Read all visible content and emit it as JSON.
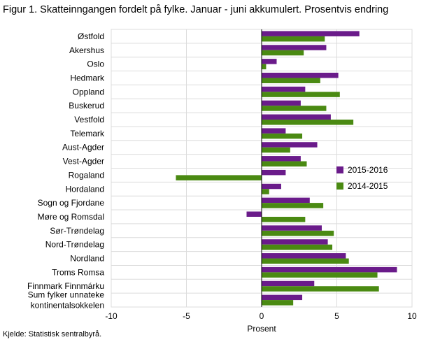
{
  "title": "Figur 1. Skatteinngangen fordelt på fylke. Januar - juni akkumulert. Prosentvis endring",
  "source": "Kjelde: Statistisk sentralbyrå.",
  "chart_data": {
    "type": "bar",
    "orientation": "horizontal",
    "categories": [
      [
        "Østfold"
      ],
      [
        "Akershus"
      ],
      [
        "Oslo"
      ],
      [
        "Hedmark"
      ],
      [
        "Oppland"
      ],
      [
        "Buskerud"
      ],
      [
        "Vestfold"
      ],
      [
        "Telemark"
      ],
      [
        "Aust-Agder"
      ],
      [
        "Vest-Agder"
      ],
      [
        "Rogaland"
      ],
      [
        "Hordaland"
      ],
      [
        "Sogn og Fjordane"
      ],
      [
        "Møre og Romsdal"
      ],
      [
        "Sør-Trøndelag"
      ],
      [
        "Nord-Trøndelag"
      ],
      [
        "Nordland"
      ],
      [
        "Troms Romsa"
      ],
      [
        "Finnmark Finnmárku"
      ],
      [
        "Sum fylker unnateke",
        "kontinentalsokkelen"
      ]
    ],
    "series": [
      {
        "name": "2015-2016",
        "color": "#6a1b8a",
        "values": [
          6.5,
          4.3,
          1.0,
          5.1,
          2.9,
          2.6,
          4.6,
          1.6,
          3.7,
          2.6,
          1.6,
          1.3,
          3.2,
          -1.0,
          4.0,
          4.4,
          5.6,
          9.0,
          3.5,
          2.7
        ]
      },
      {
        "name": "2014-2015",
        "color": "#4a8a12",
        "values": [
          4.2,
          2.8,
          0.3,
          3.9,
          5.2,
          4.3,
          6.1,
          2.7,
          1.9,
          3.0,
          -5.7,
          0.5,
          4.1,
          2.9,
          4.8,
          4.7,
          5.8,
          7.7,
          7.8,
          2.1
        ]
      }
    ],
    "xlim": [
      -10,
      10
    ],
    "xticks": [
      -10,
      -5,
      0,
      5,
      10
    ],
    "xlabel": "Prosent",
    "grid": true,
    "legend_position": "right"
  }
}
